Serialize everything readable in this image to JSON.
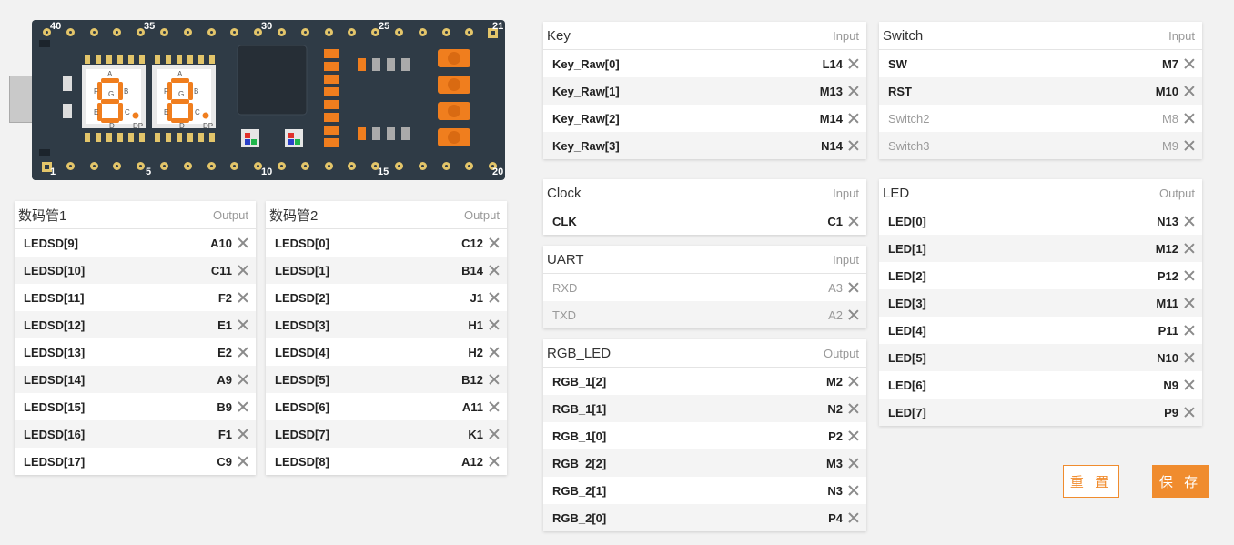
{
  "board": {
    "pin_labels": {
      "p40": "40",
      "p35": "35",
      "p30": "30",
      "p25": "25",
      "p21": "21",
      "p1": "1",
      "p5": "5",
      "p10": "10",
      "p15": "15",
      "p20": "20"
    },
    "seg_letters": {
      "a": "A",
      "b": "B",
      "c": "C",
      "d": "D",
      "e": "E",
      "f": "F",
      "g": "G",
      "dp": "DP"
    }
  },
  "panels": {
    "seg1": {
      "title": "数码管1",
      "dir": "Output",
      "rows": [
        {
          "name": "LEDSD[9]",
          "pin": "A10"
        },
        {
          "name": "LEDSD[10]",
          "pin": "C11"
        },
        {
          "name": "LEDSD[11]",
          "pin": "F2"
        },
        {
          "name": "LEDSD[12]",
          "pin": "E1"
        },
        {
          "name": "LEDSD[13]",
          "pin": "E2"
        },
        {
          "name": "LEDSD[14]",
          "pin": "A9"
        },
        {
          "name": "LEDSD[15]",
          "pin": "B9"
        },
        {
          "name": "LEDSD[16]",
          "pin": "F1"
        },
        {
          "name": "LEDSD[17]",
          "pin": "C9"
        }
      ]
    },
    "seg2": {
      "title": "数码管2",
      "dir": "Output",
      "rows": [
        {
          "name": "LEDSD[0]",
          "pin": "C12"
        },
        {
          "name": "LEDSD[1]",
          "pin": "B14"
        },
        {
          "name": "LEDSD[2]",
          "pin": "J1"
        },
        {
          "name": "LEDSD[3]",
          "pin": "H1"
        },
        {
          "name": "LEDSD[4]",
          "pin": "H2"
        },
        {
          "name": "LEDSD[5]",
          "pin": "B12"
        },
        {
          "name": "LEDSD[6]",
          "pin": "A11"
        },
        {
          "name": "LEDSD[7]",
          "pin": "K1"
        },
        {
          "name": "LEDSD[8]",
          "pin": "A12"
        }
      ]
    },
    "key": {
      "title": "Key",
      "dir": "Input",
      "rows": [
        {
          "name": "Key_Raw[0]",
          "pin": "L14"
        },
        {
          "name": "Key_Raw[1]",
          "pin": "M13"
        },
        {
          "name": "Key_Raw[2]",
          "pin": "M14"
        },
        {
          "name": "Key_Raw[3]",
          "pin": "N14"
        }
      ]
    },
    "switch": {
      "title": "Switch",
      "dir": "Input",
      "rows": [
        {
          "name": "SW",
          "pin": "M7"
        },
        {
          "name": "RST",
          "pin": "M10"
        },
        {
          "name": "Switch2",
          "pin": "M8",
          "dim": true
        },
        {
          "name": "Switch3",
          "pin": "M9",
          "dim": true
        }
      ]
    },
    "clock": {
      "title": "Clock",
      "dir": "Input",
      "rows": [
        {
          "name": "CLK",
          "pin": "C1"
        }
      ]
    },
    "uart": {
      "title": "UART",
      "dir": "Input",
      "rows": [
        {
          "name": "RXD",
          "pin": "A3",
          "dim": true
        },
        {
          "name": "TXD",
          "pin": "A2",
          "dim": true
        }
      ]
    },
    "rgb": {
      "title": "RGB_LED",
      "dir": "Output",
      "rows": [
        {
          "name": "RGB_1[2]",
          "pin": "M2"
        },
        {
          "name": "RGB_1[1]",
          "pin": "N2"
        },
        {
          "name": "RGB_1[0]",
          "pin": "P2"
        },
        {
          "name": "RGB_2[2]",
          "pin": "M3"
        },
        {
          "name": "RGB_2[1]",
          "pin": "N3"
        },
        {
          "name": "RGB_2[0]",
          "pin": "P4"
        }
      ]
    },
    "led": {
      "title": "LED",
      "dir": "Output",
      "rows": [
        {
          "name": "LED[0]",
          "pin": "N13"
        },
        {
          "name": "LED[1]",
          "pin": "M12"
        },
        {
          "name": "LED[2]",
          "pin": "P12"
        },
        {
          "name": "LED[3]",
          "pin": "M11"
        },
        {
          "name": "LED[4]",
          "pin": "P11"
        },
        {
          "name": "LED[5]",
          "pin": "N10"
        },
        {
          "name": "LED[6]",
          "pin": "N9"
        },
        {
          "name": "LED[7]",
          "pin": "P9"
        }
      ]
    }
  },
  "buttons": {
    "reset": "重 置",
    "save": "保 存"
  },
  "colors": {
    "accent": "#f08c2e",
    "board": "#2f3b46",
    "pin": "#e3c56a",
    "segment": "#f07e1e"
  },
  "icons": {
    "remove": "close-icon"
  }
}
